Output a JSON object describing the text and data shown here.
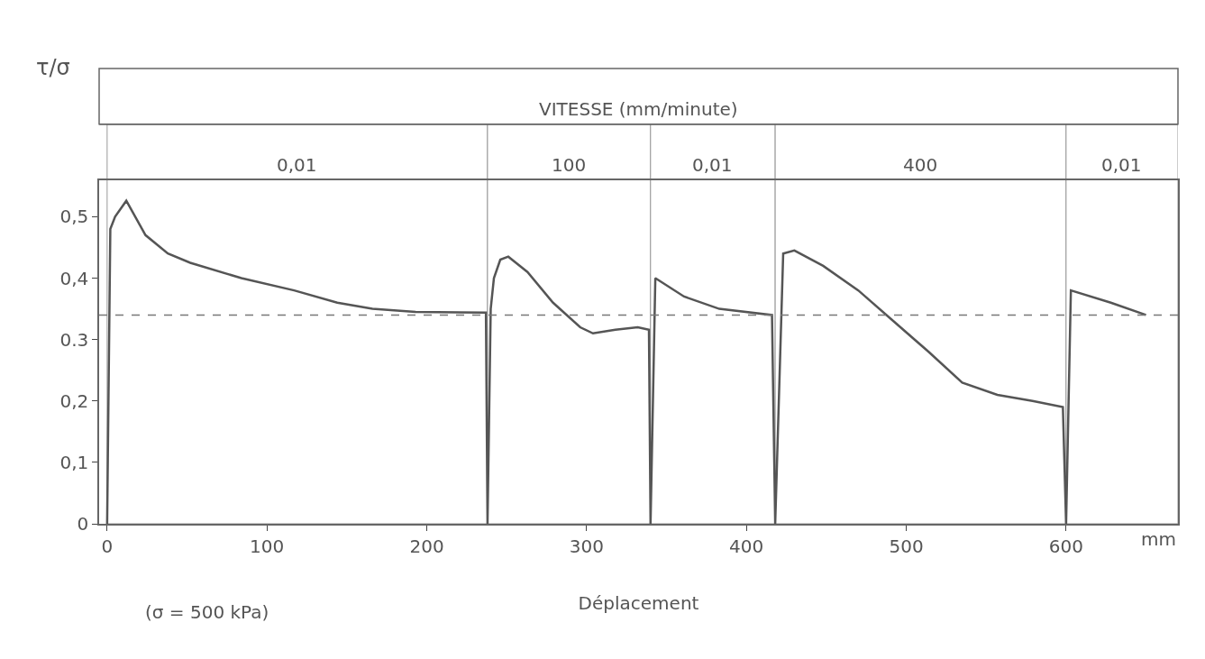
{
  "chart_data": {
    "type": "line",
    "xlabel": "Déplacement",
    "ylabel": "τ/σ",
    "x": [
      0,
      2,
      5,
      12,
      24,
      38,
      52,
      84,
      117,
      144,
      166,
      193,
      237,
      238,
      240,
      242,
      246,
      251,
      263,
      279,
      296,
      304,
      318,
      332,
      339,
      340,
      343,
      361,
      383,
      416,
      418,
      423,
      430,
      448,
      470,
      492,
      514,
      535,
      557,
      579,
      598,
      600,
      603,
      628,
      650
    ],
    "series": [
      {
        "color": "#555555",
        "values": [
          0,
          0.48,
          0.5,
          0.526,
          0.47,
          0.44,
          0.425,
          0.4,
          0.38,
          0.36,
          0.35,
          0.345,
          0.344,
          0,
          0.35,
          0.4,
          0.43,
          0.435,
          0.41,
          0.36,
          0.32,
          0.31,
          0.316,
          0.32,
          0.316,
          0,
          0.4,
          0.37,
          0.35,
          0.34,
          0,
          0.44,
          0.445,
          0.42,
          0.38,
          0.33,
          0.28,
          0.23,
          0.21,
          0.2,
          0.19,
          0,
          0.38,
          0.36,
          0.34
        ]
      }
    ],
    "xlim": [
      -5,
      670
    ],
    "xticks": [
      0,
      100,
      200,
      300,
      400,
      500,
      600
    ],
    "ylim": [
      0,
      0.56
    ],
    "yticks": [
      0,
      {
        "value": 0.1,
        "label": "0,1"
      },
      {
        "value": 0.2,
        "label": "0,2"
      },
      {
        "value": 0.3,
        "label": "0.3"
      },
      {
        "value": 0.4,
        "label": "0,4"
      },
      {
        "value": 0.5,
        "label": "0,5"
      }
    ],
    "ref_lines": [
      {
        "axis": "y",
        "value": 0.34,
        "line_style": "dashed"
      }
    ],
    "bands": [
      {
        "axis": "x",
        "from": 0,
        "to": 238,
        "label": "0,01",
        "color": "#ffffff"
      },
      {
        "axis": "x",
        "from": 238,
        "to": 340,
        "label": "100",
        "color": "#ffffff"
      },
      {
        "axis": "x",
        "from": 340,
        "to": 418,
        "label": "0,01",
        "color": "#ffffff"
      },
      {
        "axis": "x",
        "from": 418,
        "to": 600,
        "label": "400",
        "color": "#ffffff"
      },
      {
        "axis": "x",
        "from": 600,
        "to": 670,
        "label": "0,01",
        "color": "#ffffff"
      }
    ],
    "legend_title": "VITESSE (mm/minute)",
    "annotations": [
      "mm",
      "(σ = 500 kPa)"
    ],
    "grid": false,
    "marker": "none",
    "line_style": "solid"
  }
}
